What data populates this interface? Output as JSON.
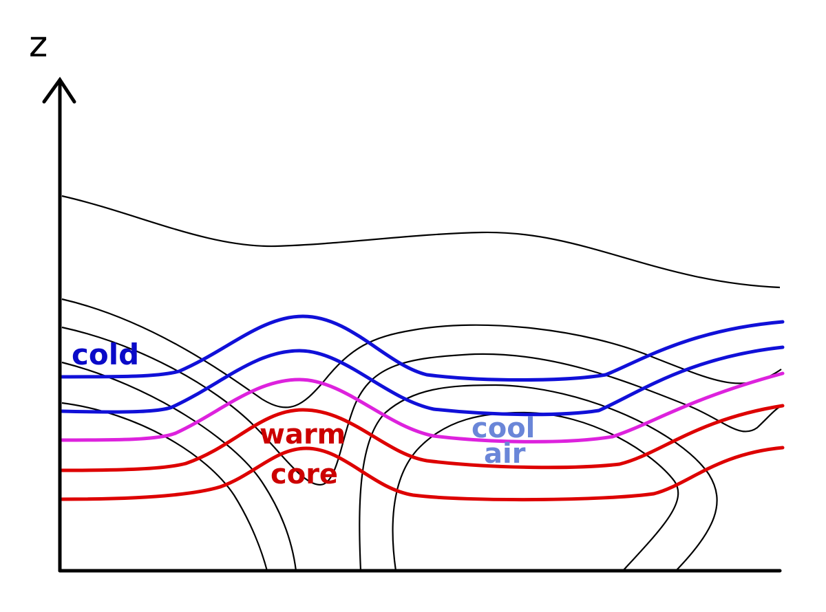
{
  "axis": {
    "z_label": "z"
  },
  "labels": {
    "cold": "cold",
    "warm": "warm",
    "core": "core",
    "cool": "cool",
    "air": "air"
  },
  "colors": {
    "cold_text": "#0a0ac8",
    "warm_text": "#cc0000",
    "cool_text": "#6a86d8",
    "blue_isentrope": "#1010d8",
    "magenta_isentrope": "#dd22dd",
    "red_isentrope": "#dd0000",
    "contour": "#000000"
  }
}
